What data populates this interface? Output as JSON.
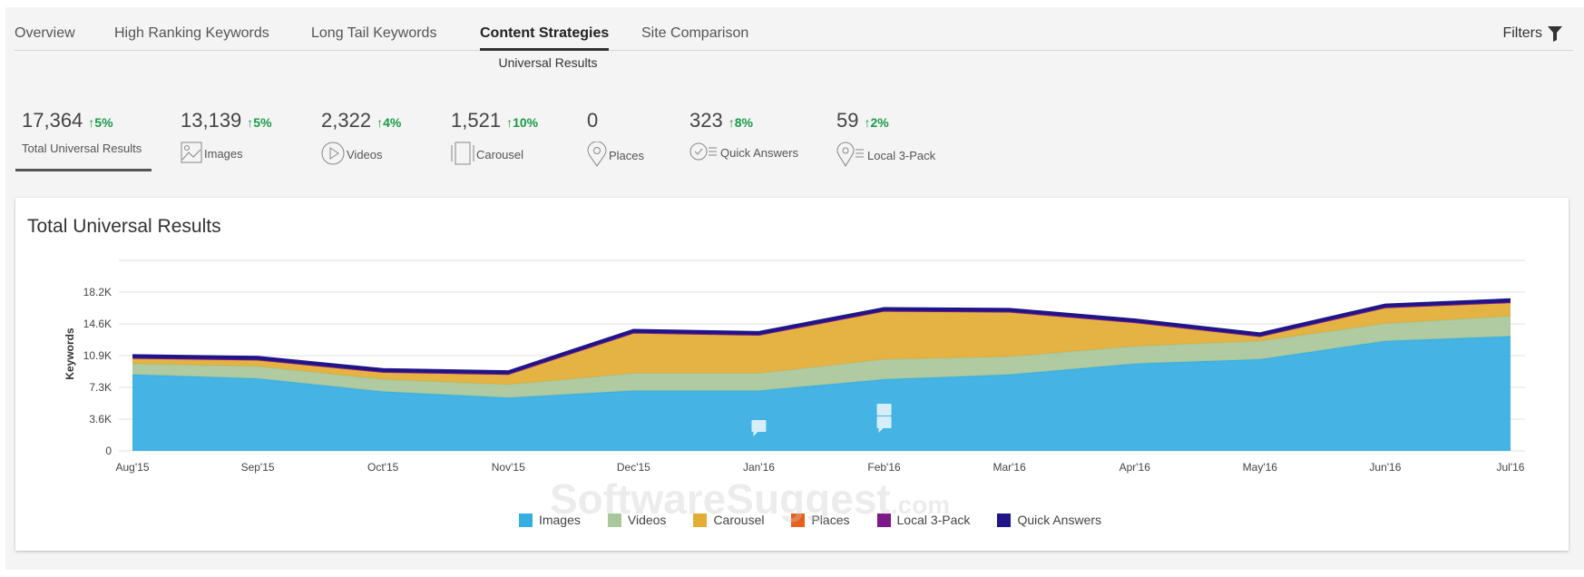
{
  "tabs": [
    {
      "label": "Overview"
    },
    {
      "label": "High Ranking Keywords"
    },
    {
      "label": "Long Tail Keywords"
    },
    {
      "label": "Content Strategies",
      "active": true
    },
    {
      "label": "Site Comparison"
    }
  ],
  "filters_label": "Filters",
  "subtitle": "Universal Results",
  "metrics": [
    {
      "value": "17,364",
      "change": "↑5%",
      "label": "Total Universal Results",
      "icon": ""
    },
    {
      "value": "13,139",
      "change": "↑5%",
      "label": "Images",
      "icon": "image-icon"
    },
    {
      "value": "2,322",
      "change": "↑4%",
      "label": "Videos",
      "icon": "play-icon"
    },
    {
      "value": "1,521",
      "change": "↑10%",
      "label": "Carousel",
      "icon": "carousel-icon"
    },
    {
      "value": "0",
      "change": "",
      "label": "Places",
      "icon": "map-pin-icon"
    },
    {
      "value": "323",
      "change": "↑8%",
      "label": "Quick Answers",
      "icon": "check-list-icon"
    },
    {
      "value": "59",
      "change": "↑2%",
      "label": "Local 3-Pack",
      "icon": "pin-list-icon"
    }
  ],
  "watermark": {
    "main": "SoftwareSuggest",
    "suffix": ".com"
  },
  "chart_data": {
    "type": "area",
    "stacked": true,
    "title": "Total Universal Results",
    "xlabel": "",
    "ylabel": "Keywords",
    "categories": [
      "Aug'15",
      "Sep'15",
      "Oct'15",
      "Nov'15",
      "Dec'15",
      "Jan'16",
      "Feb'16",
      "Mar'16",
      "Apr'16",
      "May'16",
      "Jun'16",
      "Jul'16"
    ],
    "yticks": [
      "0",
      "3.6K",
      "7.3K",
      "10.9K",
      "14.6K",
      "18.2K"
    ],
    "ytick_values": [
      0,
      3640,
      7280,
      10920,
      14560,
      18200
    ],
    "ylim": [
      0,
      21840
    ],
    "grid": true,
    "legend": "bottom",
    "series": [
      {
        "name": "Images",
        "color": "#35aee2",
        "values": [
          8750,
          8300,
          6800,
          6100,
          6900,
          6900,
          8200,
          8750,
          10000,
          10500,
          12600,
          13139
        ]
      },
      {
        "name": "Videos",
        "color": "#a9c79a",
        "values": [
          1250,
          1400,
          1400,
          1500,
          2000,
          2000,
          2300,
          2050,
          2000,
          2100,
          2000,
          2322
        ]
      },
      {
        "name": "Carousel",
        "color": "#e3ad33",
        "values": [
          600,
          700,
          800,
          1150,
          4600,
          4350,
          5500,
          5100,
          2700,
          500,
          1800,
          1521
        ]
      },
      {
        "name": "Places",
        "color": "#e8601c",
        "values": [
          0,
          0,
          0,
          0,
          0,
          0,
          0,
          0,
          0,
          0,
          0,
          0
        ]
      },
      {
        "name": "Local 3-Pack",
        "color": "#7b1a88",
        "values": [
          60,
          60,
          60,
          60,
          60,
          60,
          60,
          60,
          60,
          60,
          60,
          59
        ]
      },
      {
        "name": "Quick Answers",
        "color": "#1f1588",
        "values": [
          300,
          300,
          300,
          300,
          300,
          300,
          300,
          300,
          300,
          300,
          300,
          323
        ]
      }
    ],
    "annotations": [
      "Jan'16",
      "Feb'16"
    ]
  }
}
